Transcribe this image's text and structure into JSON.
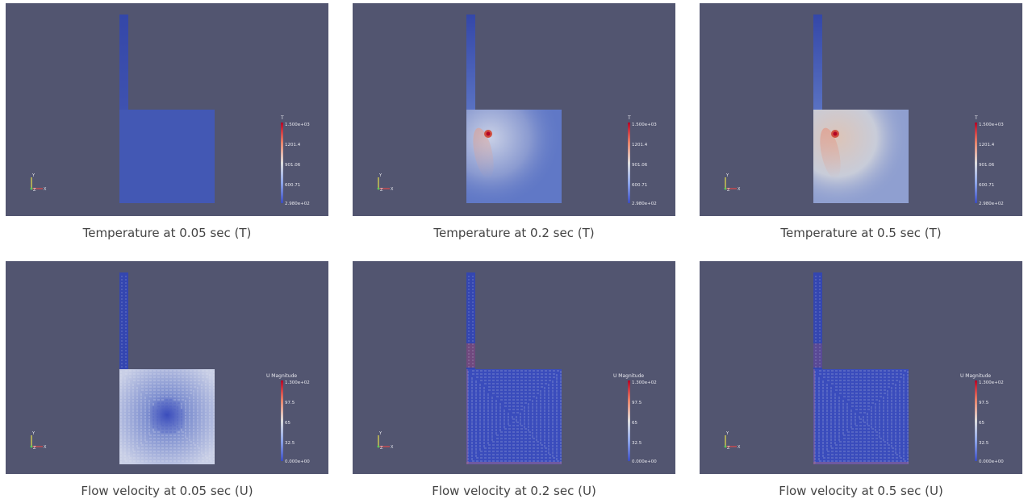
{
  "panels": [
    {
      "id": "t005",
      "caption": "Temperature at 0.05 sec (T)",
      "field": "T",
      "stage": 0,
      "legend_title": "T",
      "legend_ticks": [
        "1.500e+03",
        "1201.4",
        "901.06",
        "600.71",
        "2.980e+02"
      ]
    },
    {
      "id": "t02",
      "caption": "Temperature at 0.2 sec (T)",
      "field": "T",
      "stage": 1,
      "legend_title": "T",
      "legend_ticks": [
        "1.500e+03",
        "1201.4",
        "901.06",
        "600.71",
        "2.980e+02"
      ]
    },
    {
      "id": "t05",
      "caption": "Temperature at 0.5 sec (T)",
      "field": "T",
      "stage": 2,
      "legend_title": "T",
      "legend_ticks": [
        "1.500e+03",
        "1201.4",
        "901.06",
        "600.71",
        "2.980e+02"
      ]
    },
    {
      "id": "u005",
      "caption": "Flow velocity at 0.05 sec (U)",
      "field": "U",
      "stage": 0,
      "legend_title": "U Magnitude",
      "legend_ticks": [
        "1.300e+02",
        "97.5",
        "65",
        "32.5",
        "0.000e+00"
      ]
    },
    {
      "id": "u02",
      "caption": "Flow velocity at 0.2 sec (U)",
      "field": "U",
      "stage": 1,
      "legend_title": "U Magnitude",
      "legend_ticks": [
        "1.300e+02",
        "97.5",
        "65",
        "32.5",
        "0.000e+00"
      ]
    },
    {
      "id": "u05",
      "caption": "Flow velocity at 0.5 sec (U)",
      "field": "U",
      "stage": 2,
      "legend_title": "U Magnitude",
      "legend_ticks": [
        "1.300e+02",
        "97.5",
        "65",
        "32.5",
        "0.000e+00"
      ]
    }
  ],
  "colors": {
    "background": "#525570",
    "cold": "#3b4cc0",
    "hot": "#b40426",
    "neutral": "#dddddd"
  },
  "axes_labels": {
    "y": "Y",
    "z": "Z",
    "x": "X"
  }
}
